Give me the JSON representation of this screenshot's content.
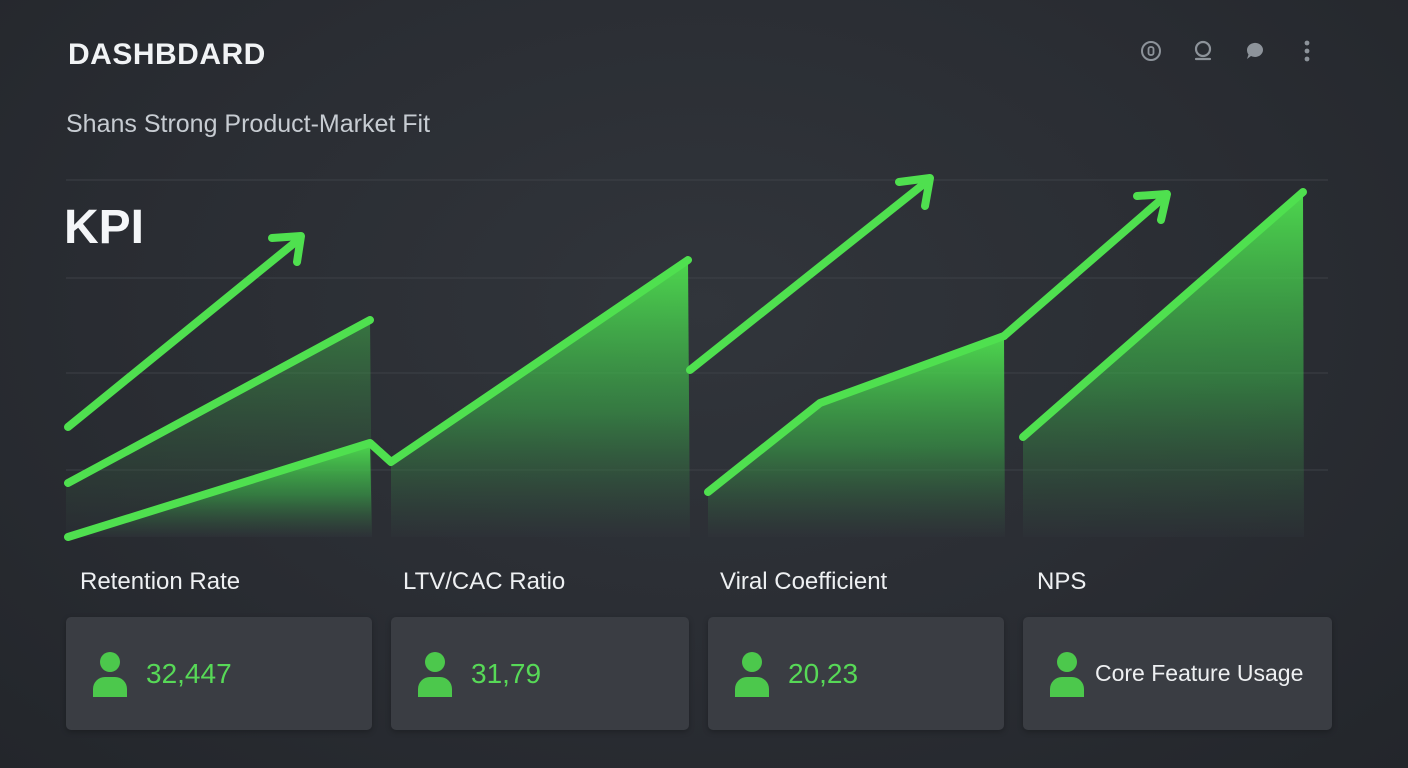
{
  "header": {
    "title": "DASHBDARD",
    "subtitle": "Shans Strong Product-Market Fit",
    "icons": [
      "settings-icon",
      "search-icon",
      "chat-icon",
      "more-vertical-icon"
    ]
  },
  "section_title": "KPI",
  "colors": {
    "background": "#2a2d33",
    "accent_green": "#4fe04f",
    "card_bg": "#3a3d43"
  },
  "metrics": [
    {
      "label": "Retention Rate",
      "value": "32,447",
      "icon": "user-icon"
    },
    {
      "label": "LTV/CAC Ratio",
      "value": "31,79",
      "icon": "user-icon"
    },
    {
      "label": "Viral Coefficient",
      "value": "20,23",
      "icon": "user-icon"
    },
    {
      "label": "NPS",
      "value": "Core Feature Usage",
      "icon": "user-icon"
    }
  ]
}
